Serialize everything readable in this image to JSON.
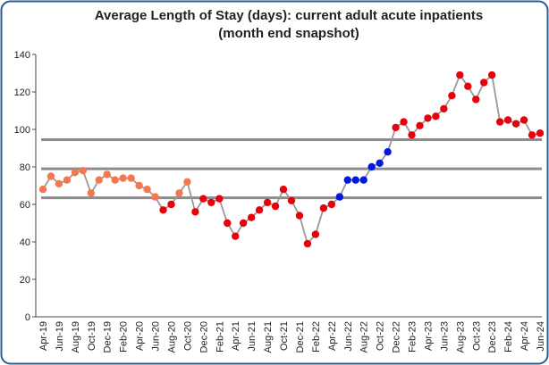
{
  "chart_data": {
    "type": "line",
    "title": [
      "Average Length of Stay (days): current adult acute inpatients",
      "(month end snapshot)"
    ],
    "categories": [
      "Apr-19",
      null,
      "Jun-19",
      null,
      "Aug-19",
      null,
      "Oct-19",
      null,
      "Dec-19",
      null,
      "Feb-20",
      null,
      "Apr-20",
      null,
      "Jun-20",
      null,
      "Aug-20",
      null,
      "Oct-20",
      null,
      "Dec-20",
      null,
      "Feb-21",
      null,
      "Apr-21",
      null,
      "Jun-21",
      null,
      "Aug-21",
      null,
      "Oct-21",
      null,
      "Dec-21",
      null,
      "Feb-22",
      null,
      "Apr-22",
      null,
      "Jun-22",
      null,
      "Aug-22",
      null,
      "Oct-22",
      null,
      "Dec-22",
      null,
      "Feb-23",
      null,
      "Apr-23",
      null,
      "Jun-23",
      null,
      "Aug-23",
      null,
      "Oct-23",
      null,
      "Dec-23",
      null,
      "Feb-24",
      null,
      "Apr-24",
      null,
      "Jun-24"
    ],
    "values": [
      68,
      75,
      71,
      73,
      77,
      78,
      66,
      73,
      76,
      73,
      74,
      74,
      70,
      68,
      64,
      57,
      60,
      66,
      72,
      56,
      63,
      61,
      63,
      50,
      43,
      50,
      53,
      57,
      61,
      59,
      68,
      62,
      54,
      39,
      44,
      58,
      60,
      64,
      73,
      73,
      73,
      80,
      82,
      88,
      101,
      104,
      97,
      102,
      106,
      107,
      111,
      118,
      129,
      123,
      116,
      125,
      129,
      104,
      105,
      103,
      105,
      97,
      98
    ],
    "point_colors": [
      "#f4774f",
      "#f4774f",
      "#f4774f",
      "#f4774f",
      "#f4774f",
      "#f4774f",
      "#f4774f",
      "#f4774f",
      "#f4774f",
      "#f4774f",
      "#f4774f",
      "#f4774f",
      "#f4774f",
      "#f4774f",
      "#f4774f",
      "#e8000b",
      "#e8000b",
      "#f4774f",
      "#f4774f",
      "#e8000b",
      "#e8000b",
      "#e8000b",
      "#e8000b",
      "#e8000b",
      "#e8000b",
      "#e8000b",
      "#e8000b",
      "#e8000b",
      "#e8000b",
      "#e8000b",
      "#e8000b",
      "#e8000b",
      "#e8000b",
      "#e8000b",
      "#e8000b",
      "#e8000b",
      "#e8000b",
      "#0018e0",
      "#0018e0",
      "#0018e0",
      "#0018e0",
      "#0018e0",
      "#0018e0",
      "#0018e0",
      "#e8000b",
      "#e8000b",
      "#e8000b",
      "#e8000b",
      "#e8000b",
      "#e8000b",
      "#e8000b",
      "#e8000b",
      "#e8000b",
      "#e8000b",
      "#e8000b",
      "#e8000b",
      "#e8000b",
      "#e8000b",
      "#e8000b",
      "#e8000b",
      "#e8000b",
      "#e8000b",
      "#e8000b"
    ],
    "line_color": "#999999",
    "hlines": [
      94.5,
      79,
      63.5
    ],
    "hline_color": "#8c8c8c",
    "ylim": [
      0,
      140
    ],
    "yticks": [
      0,
      20,
      40,
      60,
      80,
      100,
      120,
      140
    ]
  }
}
